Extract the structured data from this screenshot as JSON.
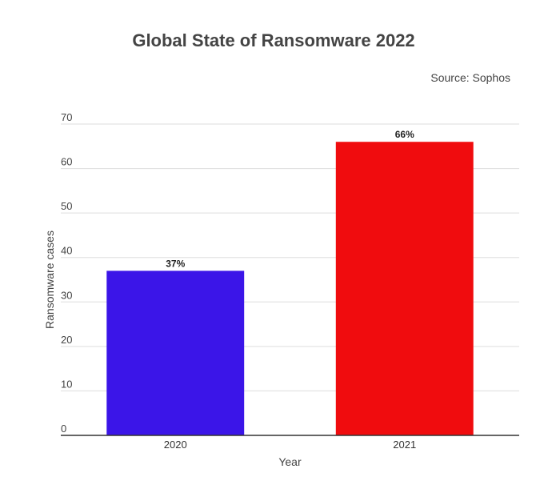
{
  "chart_data": {
    "type": "bar",
    "title": "Global State of Ransomware 2022",
    "source": "Source: Sophos",
    "categories": [
      "2020",
      "2021"
    ],
    "values": [
      37,
      66
    ],
    "data_labels": [
      "37%",
      "66%"
    ],
    "colors": [
      "#3b15e8",
      "#f00c0e"
    ],
    "xlabel": "Year",
    "ylabel": "Ransomware cases",
    "ylim": [
      0,
      70
    ],
    "yticks": [
      0,
      10,
      20,
      30,
      40,
      50,
      60,
      70
    ],
    "grid": true,
    "legend": "none"
  }
}
